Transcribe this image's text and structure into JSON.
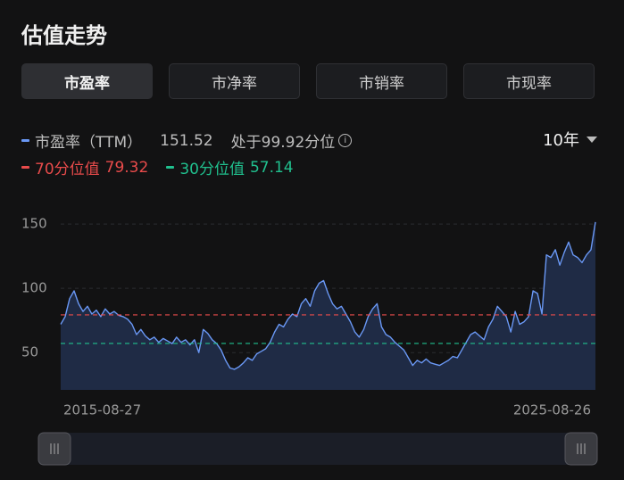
{
  "header": {
    "title": "估值走势"
  },
  "tabs": [
    "市盈率",
    "市净率",
    "市销率",
    "市现率"
  ],
  "active_tab": 0,
  "period": "10年",
  "summary": {
    "latest_value": 151.52,
    "percentile_text": "处于99.92分位"
  },
  "chart_data": {
    "type": "line",
    "categories": [
      "2015-08-27",
      null,
      null,
      null,
      null,
      null,
      null,
      null,
      null,
      null,
      null,
      null,
      null,
      null,
      null,
      null,
      null,
      null,
      null,
      null,
      null,
      null,
      null,
      null,
      null,
      null,
      null,
      null,
      null,
      null,
      null,
      null,
      null,
      null,
      null,
      null,
      null,
      null,
      null,
      null,
      null,
      null,
      null,
      null,
      null,
      null,
      null,
      null,
      null,
      null,
      null,
      null,
      null,
      null,
      null,
      null,
      null,
      null,
      null,
      null,
      null,
      null,
      null,
      null,
      null,
      null,
      null,
      null,
      null,
      null,
      null,
      null,
      null,
      null,
      null,
      null,
      null,
      null,
      null,
      null,
      null,
      null,
      null,
      null,
      null,
      null,
      null,
      null,
      null,
      null,
      null,
      null,
      null,
      null,
      null,
      null,
      null,
      null,
      null,
      null,
      null,
      null,
      null,
      null,
      null,
      null,
      null,
      null,
      null,
      null,
      null,
      null,
      null,
      null,
      null,
      null,
      null,
      null,
      null,
      null,
      "2025-08-26"
    ],
    "series": [
      {
        "name": "市盈率（TTM）",
        "color": "#6a98f5",
        "fill": "#1f2b45",
        "values": [
          72,
          78,
          92,
          98,
          88,
          82,
          86,
          80,
          83,
          78,
          84,
          80,
          82,
          79,
          78,
          76,
          72,
          64,
          68,
          63,
          60,
          62,
          58,
          61,
          59,
          57,
          62,
          58,
          60,
          56,
          60,
          50,
          68,
          65,
          60,
          57,
          52,
          44,
          38,
          37,
          39,
          42,
          46,
          44,
          49,
          51,
          53,
          58,
          66,
          72,
          70,
          76,
          80,
          78,
          88,
          92,
          86,
          98,
          104,
          106,
          96,
          88,
          84,
          86,
          80,
          74,
          66,
          62,
          68,
          78,
          84,
          88,
          70,
          64,
          62,
          58,
          55,
          52,
          46,
          40,
          44,
          42,
          45,
          42,
          41,
          40,
          42,
          44,
          47,
          46,
          52,
          58,
          64,
          66,
          63,
          60,
          70,
          76,
          86,
          82,
          78,
          66,
          82,
          72,
          74,
          78,
          98,
          96,
          80,
          126,
          124,
          130,
          118,
          128,
          136,
          126,
          124,
          120,
          126,
          130,
          151.52
        ]
      }
    ],
    "reference_lines": [
      {
        "name": "70分位值",
        "value": 79.32,
        "color": "#e84b4b"
      },
      {
        "name": "30分位值",
        "value": 57.14,
        "color": "#20c08e"
      }
    ],
    "ylim": [
      21,
      157
    ],
    "yticks": [
      50,
      100,
      150
    ],
    "grid": true
  }
}
